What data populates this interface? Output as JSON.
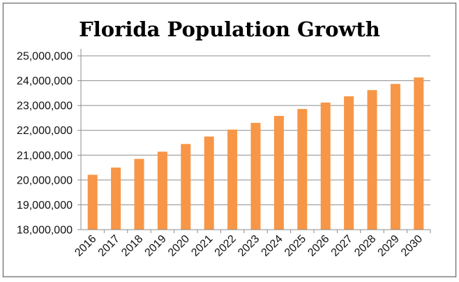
{
  "chart_data": {
    "type": "bar",
    "title": "Florida Population Growth",
    "xlabel": "",
    "ylabel": "",
    "categories": [
      "2016",
      "2017",
      "2018",
      "2019",
      "2020",
      "2021",
      "2022",
      "2023",
      "2024",
      "2025",
      "2026",
      "2027",
      "2028",
      "2029",
      "2030"
    ],
    "values": [
      20210000,
      20500000,
      20850000,
      21140000,
      21450000,
      21750000,
      22030000,
      22300000,
      22580000,
      22860000,
      23120000,
      23370000,
      23620000,
      23870000,
      24130000
    ],
    "ylim": [
      18000000,
      25000000
    ],
    "yticks": [
      18000000,
      19000000,
      20000000,
      21000000,
      22000000,
      23000000,
      24000000,
      25000000
    ],
    "ytick_labels": [
      "18,000,000",
      "19,000,000",
      "20,000,000",
      "21,000,000",
      "22,000,000",
      "23,000,000",
      "24,000,000",
      "25,000,000"
    ],
    "grid": true,
    "legend": "none",
    "colors": {
      "bar": "#F79646",
      "grid": "#8c8c8c",
      "border": "#7f7f7f"
    }
  }
}
